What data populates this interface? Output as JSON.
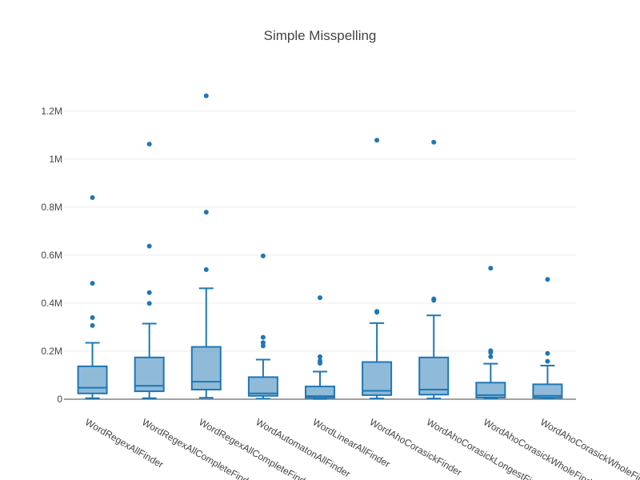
{
  "chart_data": {
    "type": "box",
    "title": "Simple Misspelling",
    "xlabel": "",
    "ylabel": "",
    "ylim": [
      0,
      1350000
    ],
    "yticks": [
      {
        "value": 0,
        "label": "0"
      },
      {
        "value": 200000,
        "label": "0.2M"
      },
      {
        "value": 400000,
        "label": "0.4M"
      },
      {
        "value": 600000,
        "label": "0.6M"
      },
      {
        "value": 800000,
        "label": "0.8M"
      },
      {
        "value": 1000000,
        "label": "1M"
      },
      {
        "value": 1200000,
        "label": "1.2M"
      }
    ],
    "grid": true,
    "legend": "none",
    "color": "#1f77b4",
    "fill_color": "rgba(31,119,180,0.5)",
    "categories": [
      "WordRegexAllFinder",
      "WordRegexAllCompleteFinder",
      "WordRegexAllCompleteFinder",
      "WordAutomatonAllFinder",
      "WordLinearAllFinder",
      "WordAhoCorasickFinder",
      "WordAhoCorasickLongestFinder",
      "WordAhoCorasickWholeFinder",
      "WordAhoCorasickWholeFinder"
    ],
    "boxes": [
      {
        "lowerfence": 4000,
        "q1": 24000,
        "median": 48000,
        "q3": 137000,
        "upperfence": 235000,
        "outliers": [
          307000,
          340000,
          483000,
          840000
        ]
      },
      {
        "lowerfence": 4000,
        "q1": 33000,
        "median": 56000,
        "q3": 174000,
        "upperfence": 315000,
        "outliers": [
          399000,
          444000,
          638000,
          1063000
        ]
      },
      {
        "lowerfence": 6000,
        "q1": 40000,
        "median": 73000,
        "q3": 218000,
        "upperfence": 462000,
        "outliers": [
          540000,
          779000,
          1264000
        ]
      },
      {
        "lowerfence": 2000,
        "q1": 14000,
        "median": 24000,
        "q3": 92000,
        "upperfence": 165000,
        "outliers": [
          222000,
          236000,
          258000,
          597000
        ]
      },
      {
        "lowerfence": 1000,
        "q1": 6000,
        "median": 13000,
        "q3": 53000,
        "upperfence": 115000,
        "outliers": [
          150000,
          160000,
          177000,
          423000
        ]
      },
      {
        "lowerfence": 3000,
        "q1": 17000,
        "median": 35000,
        "q3": 155000,
        "upperfence": 317000,
        "outliers": [
          362000,
          366000,
          1079000
        ]
      },
      {
        "lowerfence": 3000,
        "q1": 19000,
        "median": 40000,
        "q3": 174000,
        "upperfence": 349000,
        "outliers": [
          412000,
          418000,
          1071000
        ]
      },
      {
        "lowerfence": 2000,
        "q1": 7000,
        "median": 17000,
        "q3": 69000,
        "upperfence": 148000,
        "outliers": [
          177000,
          195000,
          202000,
          546000
        ]
      },
      {
        "lowerfence": 2000,
        "q1": 6000,
        "median": 14000,
        "q3": 62000,
        "upperfence": 140000,
        "outliers": [
          158000,
          191000,
          499000
        ]
      }
    ]
  }
}
